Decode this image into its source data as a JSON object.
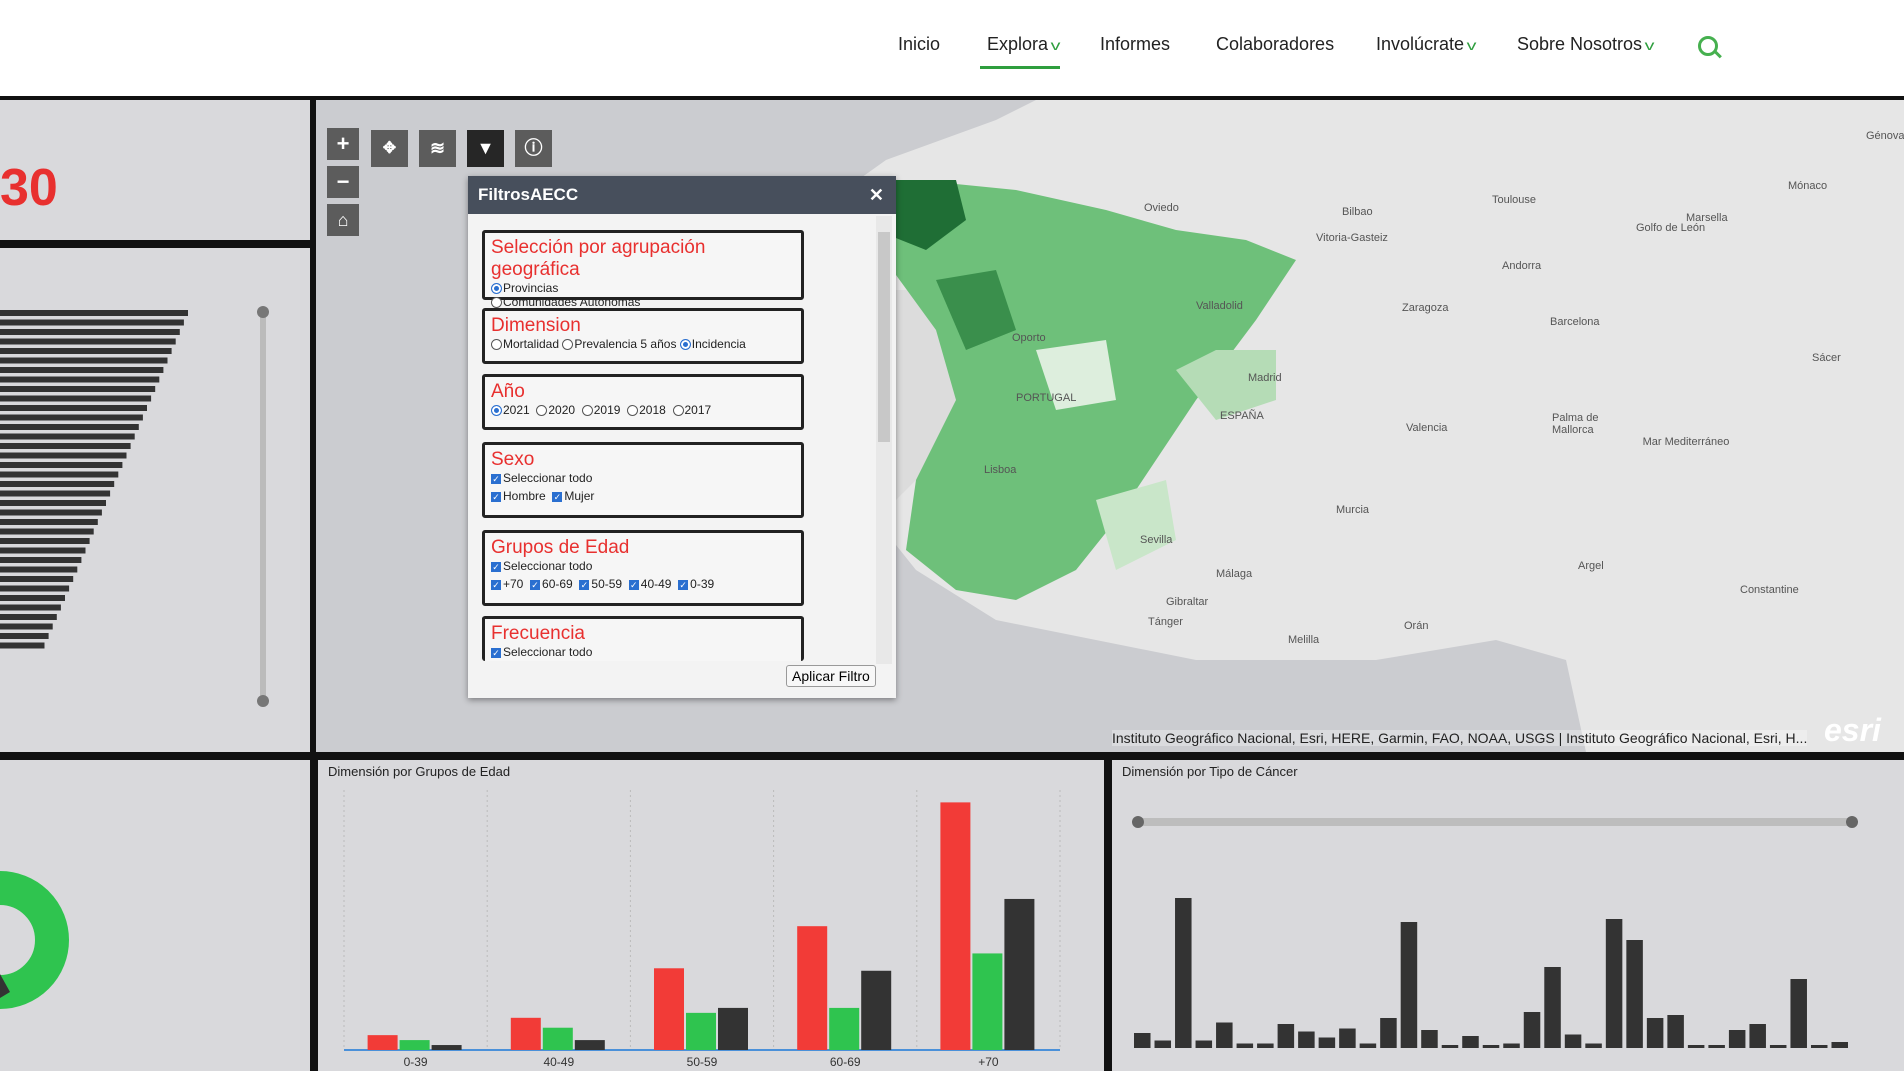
{
  "nav": {
    "items": [
      {
        "label": "Inicio"
      },
      {
        "label": "Explora"
      },
      {
        "label": "Informes"
      },
      {
        "label": "Colaboradores"
      },
      {
        "label": "Involúcrate"
      },
      {
        "label": "Sobre Nosotros"
      }
    ]
  },
  "left_panel": {
    "big_number": "30"
  },
  "filter": {
    "title": "FiltrosAECC",
    "close": "✕",
    "geo": {
      "title": "Selección por agrupación geográfica",
      "options": [
        "Provincias",
        "Comunidades Autónomas"
      ],
      "selected": "Provincias"
    },
    "dimension": {
      "title": "Dimension",
      "options": [
        "Mortalidad",
        "Prevalencia 5 años",
        "Incidencia"
      ],
      "selected": "Incidencia"
    },
    "year": {
      "title": "Año",
      "options": [
        "2021",
        "2020",
        "2019",
        "2018",
        "2017"
      ],
      "selected": "2021"
    },
    "sex": {
      "title": "Sexo",
      "select_all": "Seleccionar todo",
      "options": [
        "Hombre",
        "Mujer"
      ]
    },
    "age": {
      "title": "Grupos de Edad",
      "select_all": "Seleccionar todo",
      "options": [
        "+70",
        "60-69",
        "50-59",
        "40-49",
        "0-39"
      ]
    },
    "freq": {
      "title": "Frecuencia",
      "select_all": "Seleccionar todo"
    },
    "apply": "Aplicar Filtro"
  },
  "map": {
    "labels": [
      "Toulouse",
      "Mónaco",
      "Génova",
      "Marsella",
      "Golfo de León",
      "Andorra",
      "Oviedo",
      "Bilbao",
      "Vitoria-Gasteiz",
      "Zaragoza",
      "Barcelona",
      "Valladolid",
      "Oporto",
      "PORTUGAL",
      "Madrid",
      "ESPAÑA",
      "Valencia",
      "Palma de Mallorca",
      "Sácer",
      "Mar Mediterráneo",
      "Lisboa",
      "Murcia",
      "Sevilla",
      "Málaga",
      "Gibraltar",
      "Tánger",
      "Argel",
      "Orán",
      "Constantine",
      "Melilla"
    ],
    "attribution": "Instituto Geográfico Nacional, Esri, HERE, Garmin, FAO, NOAA, USGS | Instituto Geográfico Nacional, Esri, H...",
    "logo": "esri"
  },
  "chart_data": [
    {
      "type": "bar",
      "title": "Dimensión por Grupos de Edad",
      "categories": [
        "0-39",
        "40-49",
        "50-59",
        "60-69",
        "+70"
      ],
      "series": [
        {
          "values": [
            6,
            13,
            33,
            50,
            100
          ],
          "color": "#f23b37"
        },
        {
          "values": [
            4,
            9,
            15,
            17,
            39
          ],
          "color": "#2fc44f"
        },
        {
          "values": [
            2,
            4,
            17,
            32,
            61
          ],
          "color": "#333333"
        }
      ],
      "ylim": [
        0,
        105
      ]
    },
    {
      "type": "bar",
      "title": "Dimensión por Tipo de Cáncer",
      "values": [
        10,
        5,
        100,
        5,
        17,
        3,
        3,
        16,
        11,
        7,
        13,
        3,
        20,
        84,
        12,
        2,
        8,
        2,
        3,
        24,
        54,
        9,
        3,
        86,
        72,
        20,
        22,
        2,
        2,
        12,
        16,
        2,
        46,
        2,
        4
      ]
    }
  ],
  "side_bars": {
    "count": 36
  }
}
